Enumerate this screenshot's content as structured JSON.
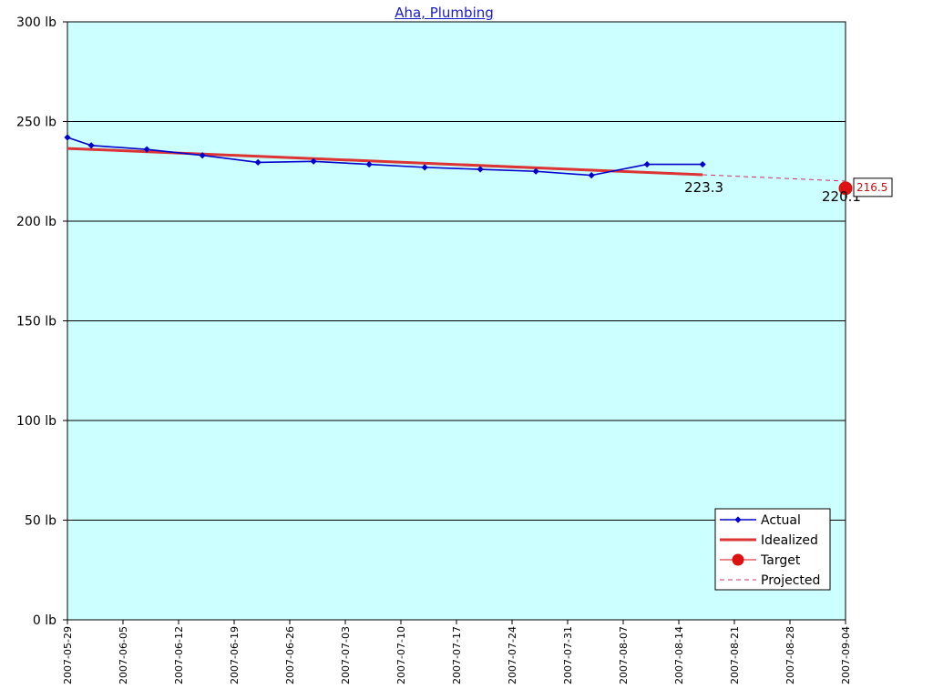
{
  "chart_data": {
    "type": "line",
    "title": "Aha, Plumbing",
    "xlabel": "",
    "ylabel": "",
    "ylim": [
      0,
      300
    ],
    "xlim": [
      "2007-05-29",
      "2007-09-04"
    ],
    "y_unit": "lb",
    "y_ticks": [
      "0 lb",
      "50 lb",
      "100 lb",
      "150 lb",
      "200 lb",
      "250 lb",
      "300 lb"
    ],
    "y_tick_values": [
      0,
      50,
      100,
      150,
      200,
      250,
      300
    ],
    "x_ticks": [
      "2007-05-29",
      "2007-06-05",
      "2007-06-12",
      "2007-06-19",
      "2007-06-26",
      "2007-07-03",
      "2007-07-10",
      "2007-07-17",
      "2007-07-24",
      "2007-07-31",
      "2007-08-07",
      "2007-08-14",
      "2007-08-21",
      "2007-08-28",
      "2007-09-04"
    ],
    "grid": true,
    "background_color": "#ccffff",
    "legend_position": "bottom-right",
    "series": [
      {
        "name": "Actual",
        "style": "line-diamond",
        "color": "#0000cc",
        "points": [
          {
            "x": "2007-05-29",
            "y": 242
          },
          {
            "x": "2007-06-01",
            "y": 238
          },
          {
            "x": "2007-06-08",
            "y": 236
          },
          {
            "x": "2007-06-15",
            "y": 233
          },
          {
            "x": "2007-06-22",
            "y": 229.5
          },
          {
            "x": "2007-06-29",
            "y": 230
          },
          {
            "x": "2007-07-06",
            "y": 228.5
          },
          {
            "x": "2007-07-13",
            "y": 227
          },
          {
            "x": "2007-07-20",
            "y": 226
          },
          {
            "x": "2007-07-27",
            "y": 225
          },
          {
            "x": "2007-08-03",
            "y": 223
          },
          {
            "x": "2007-08-10",
            "y": 228.5
          },
          {
            "x": "2007-08-17",
            "y": 228.5
          }
        ]
      },
      {
        "name": "Idealized",
        "style": "line",
        "color": "#dd3333",
        "points": [
          {
            "x": "2007-05-29",
            "y": 236.5
          },
          {
            "x": "2007-08-17",
            "y": 223.3
          }
        ]
      },
      {
        "name": "Target",
        "style": "dot",
        "color": "#dd1111",
        "points": [
          {
            "x": "2007-09-04",
            "y": 216.5
          }
        ]
      },
      {
        "name": "Projected",
        "style": "dashed",
        "color": "#cc3366",
        "points": [
          {
            "x": "2007-08-17",
            "y": 223.3
          },
          {
            "x": "2007-09-04",
            "y": 220.1
          }
        ]
      }
    ],
    "annotations": [
      {
        "text": "223.3",
        "x": "2007-08-17",
        "y": 223.3
      },
      {
        "text": "220.1",
        "x": "2007-09-04",
        "y": 220.1
      },
      {
        "text": "216.5",
        "x": "2007-09-04",
        "y": 216.5
      }
    ]
  }
}
